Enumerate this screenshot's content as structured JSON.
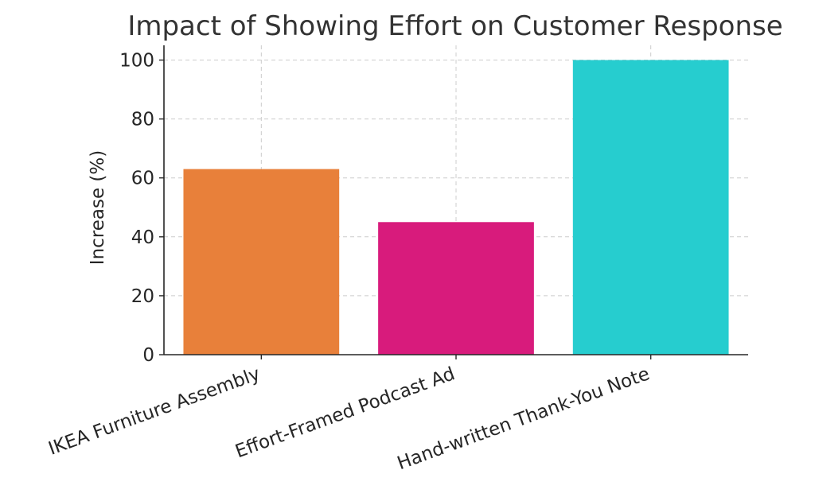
{
  "chart_data": {
    "type": "bar",
    "title": "Impact of Showing Effort on Customer Response",
    "xlabel": "",
    "ylabel": "Increase (%)",
    "categories": [
      "IKEA Furniture Assembly",
      "Effort-Framed Podcast Ad",
      "Hand-written Thank-You Note"
    ],
    "values": [
      63,
      45,
      100
    ],
    "colors": [
      "#E8803A",
      "#D81B7C",
      "#26CDCF"
    ],
    "ylim": [
      0,
      105
    ],
    "yticks": [
      0,
      20,
      40,
      60,
      80,
      100
    ],
    "grid": true,
    "legend": "none"
  }
}
